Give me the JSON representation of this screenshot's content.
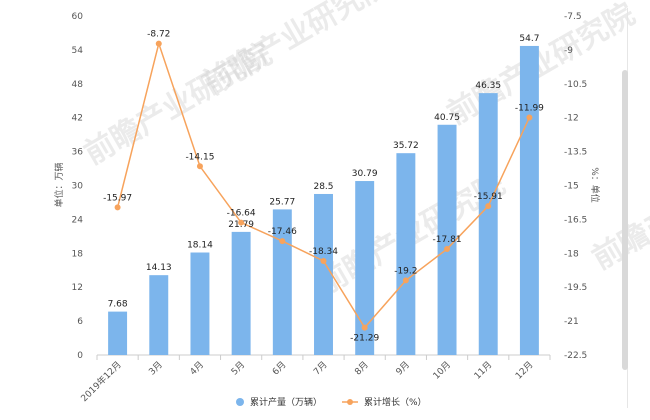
{
  "chart_data": {
    "type": "bar",
    "categories": [
      "2019年12月",
      "3月",
      "4月",
      "5月",
      "6月",
      "7月",
      "8月",
      "9月",
      "10月",
      "11月",
      "12月"
    ],
    "series": [
      {
        "name": "累计产量（万辆）",
        "type": "bar",
        "axis": "left",
        "color": "#7cb5ec",
        "values": [
          7.68,
          14.13,
          18.14,
          21.79,
          25.77,
          28.5,
          30.79,
          35.72,
          40.75,
          46.35,
          54.7
        ]
      },
      {
        "name": "累计增长（%）",
        "type": "line",
        "axis": "right",
        "color": "#f7a35c",
        "values": [
          -15.97,
          -8.72,
          -14.15,
          -16.64,
          -17.46,
          -18.34,
          -21.29,
          -19.2,
          -17.81,
          -15.91,
          -11.99
        ]
      }
    ],
    "ylabel": "单位：万辆",
    "y2label": "%：单位",
    "ylim": [
      0,
      60
    ],
    "yticks": [
      0,
      6,
      12,
      18,
      24,
      30,
      36,
      42,
      48,
      54,
      60
    ],
    "y2lim": [
      -22.5,
      -7.5
    ],
    "y2ticks": [
      -22.5,
      -21,
      -19.5,
      -18,
      -16.5,
      -15,
      -13.5,
      -12,
      -10.5,
      -9,
      -7.5
    ],
    "legend_position": "bottom-center",
    "grid": false
  }
}
